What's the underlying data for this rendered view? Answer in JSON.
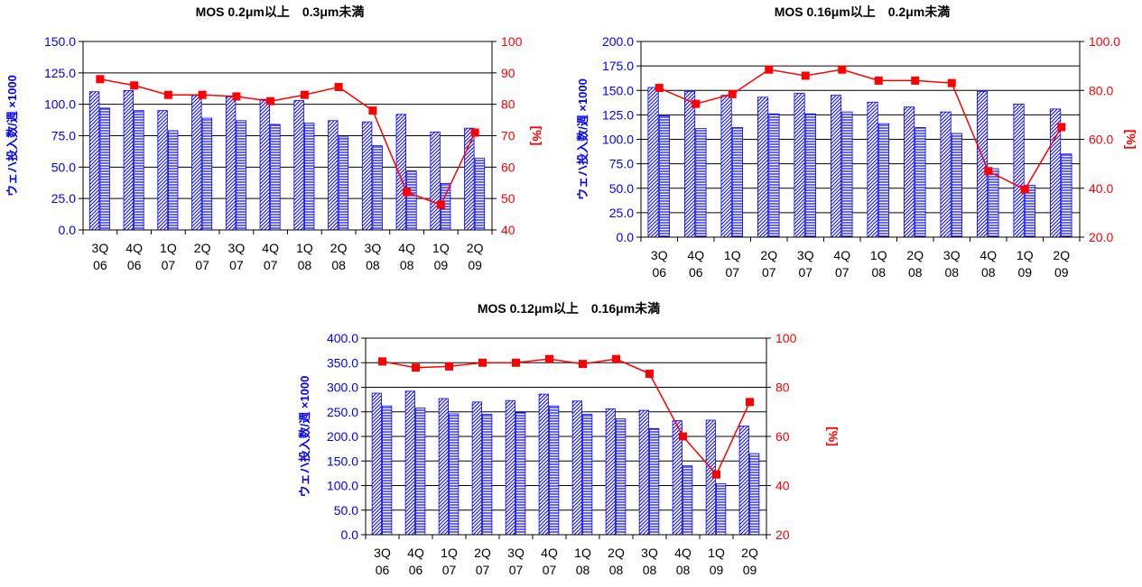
{
  "colors": {
    "bar_capacity": "#0000ff",
    "bar_fill_hatch": "#ffffff",
    "line": "#ff0000",
    "left_axis_text": "#0000ff",
    "right_axis_text": "#ff0000",
    "gridline": "#000000"
  },
  "chart_data": [
    {
      "type": "bar",
      "title": "MOS 0.2μm以上　0.3μm未満",
      "ylabel": "ウェハ投入数/週 ×1000",
      "y2label": "[%]",
      "categories": [
        [
          "3Q",
          "06"
        ],
        [
          "4Q",
          "06"
        ],
        [
          "1Q",
          "07"
        ],
        [
          "2Q",
          "07"
        ],
        [
          "3Q",
          "07"
        ],
        [
          "4Q",
          "07"
        ],
        [
          "1Q",
          "08"
        ],
        [
          "2Q",
          "08"
        ],
        [
          "3Q",
          "08"
        ],
        [
          "4Q",
          "08"
        ],
        [
          "1Q",
          "09"
        ],
        [
          "2Q",
          "09"
        ]
      ],
      "ylim": [
        0,
        150
      ],
      "yticks": [
        "0.0",
        "25.0",
        "50.0",
        "75.0",
        "100.0",
        "125.0",
        "150.0"
      ],
      "y2lim": [
        40,
        100
      ],
      "y2ticks": [
        "40",
        "50",
        "60",
        "70",
        "80",
        "90",
        "100"
      ],
      "series": [
        {
          "kind": "bar",
          "pattern": "diagonal",
          "values": [
            110,
            111,
            95,
            107,
            106,
            104,
            103,
            87,
            86,
            92,
            78,
            81
          ]
        },
        {
          "kind": "bar",
          "pattern": "horizontal",
          "values": [
            97,
            95,
            79,
            89,
            87,
            84,
            85,
            74,
            67,
            47,
            37,
            57
          ]
        },
        {
          "kind": "line",
          "values": [
            88,
            86,
            83,
            83,
            82.5,
            81,
            83,
            85.5,
            78,
            52,
            48,
            71
          ]
        }
      ],
      "grid": true
    },
    {
      "type": "bar",
      "title": "MOS 0.16μm以上　0.2μm未満",
      "ylabel": "ウェハ投入数/週 ×1000",
      "y2label": "[%]",
      "categories": [
        [
          "3Q",
          "06"
        ],
        [
          "4Q",
          "06"
        ],
        [
          "1Q",
          "07"
        ],
        [
          "2Q",
          "07"
        ],
        [
          "3Q",
          "07"
        ],
        [
          "4Q",
          "07"
        ],
        [
          "1Q",
          "08"
        ],
        [
          "2Q",
          "08"
        ],
        [
          "3Q",
          "08"
        ],
        [
          "4Q",
          "08"
        ],
        [
          "1Q",
          "09"
        ],
        [
          "2Q",
          "09"
        ]
      ],
      "ylim": [
        0,
        200
      ],
      "yticks": [
        "0.0",
        "25.0",
        "50.0",
        "75.0",
        "100.0",
        "125.0",
        "150.0",
        "175.0",
        "200.0"
      ],
      "y2lim": [
        20,
        100
      ],
      "y2ticks": [
        "20.0",
        "40.0",
        "60.0",
        "80.0",
        "100.0"
      ],
      "series": [
        {
          "kind": "bar",
          "pattern": "diagonal",
          "values": [
            153,
            149,
            145,
            143,
            147,
            145,
            138,
            133,
            128,
            149,
            136,
            131
          ]
        },
        {
          "kind": "bar",
          "pattern": "horizontal",
          "values": [
            124,
            111,
            112,
            126,
            126,
            128,
            116,
            112,
            106,
            70,
            53,
            85
          ]
        },
        {
          "kind": "line",
          "values": [
            81,
            74.5,
            78.5,
            88.5,
            86,
            88.5,
            84,
            84,
            83,
            47,
            39.5,
            65
          ]
        }
      ],
      "grid": true
    },
    {
      "type": "bar",
      "title": "MOS 0.12μm以上　0.16μm未満",
      "ylabel": "ウェハ投入数/週 ×1000",
      "y2label": "[%]",
      "categories": [
        [
          "3Q",
          "06"
        ],
        [
          "4Q",
          "06"
        ],
        [
          "1Q",
          "07"
        ],
        [
          "2Q",
          "07"
        ],
        [
          "3Q",
          "07"
        ],
        [
          "4Q",
          "07"
        ],
        [
          "1Q",
          "08"
        ],
        [
          "2Q",
          "08"
        ],
        [
          "3Q",
          "08"
        ],
        [
          "4Q",
          "08"
        ],
        [
          "1Q",
          "09"
        ],
        [
          "2Q",
          "09"
        ]
      ],
      "ylim": [
        0,
        400
      ],
      "yticks": [
        "0.0",
        "50.0",
        "100.0",
        "150.0",
        "200.0",
        "250.0",
        "300.0",
        "350.0",
        "400.0"
      ],
      "y2lim": [
        20,
        100
      ],
      "y2ticks": [
        "20",
        "40",
        "60",
        "80",
        "100"
      ],
      "series": [
        {
          "kind": "bar",
          "pattern": "diagonal",
          "values": [
            288,
            292,
            277,
            270,
            273,
            286,
            272,
            256,
            253,
            232,
            233,
            221
          ]
        },
        {
          "kind": "bar",
          "pattern": "horizontal",
          "values": [
            262,
            258,
            246,
            245,
            249,
            262,
            245,
            236,
            216,
            140,
            104,
            165
          ]
        },
        {
          "kind": "line",
          "values": [
            90.5,
            88,
            88.5,
            90,
            90,
            91.5,
            89.5,
            91.5,
            85.5,
            60,
            44.5,
            74
          ]
        }
      ],
      "grid": true
    }
  ]
}
